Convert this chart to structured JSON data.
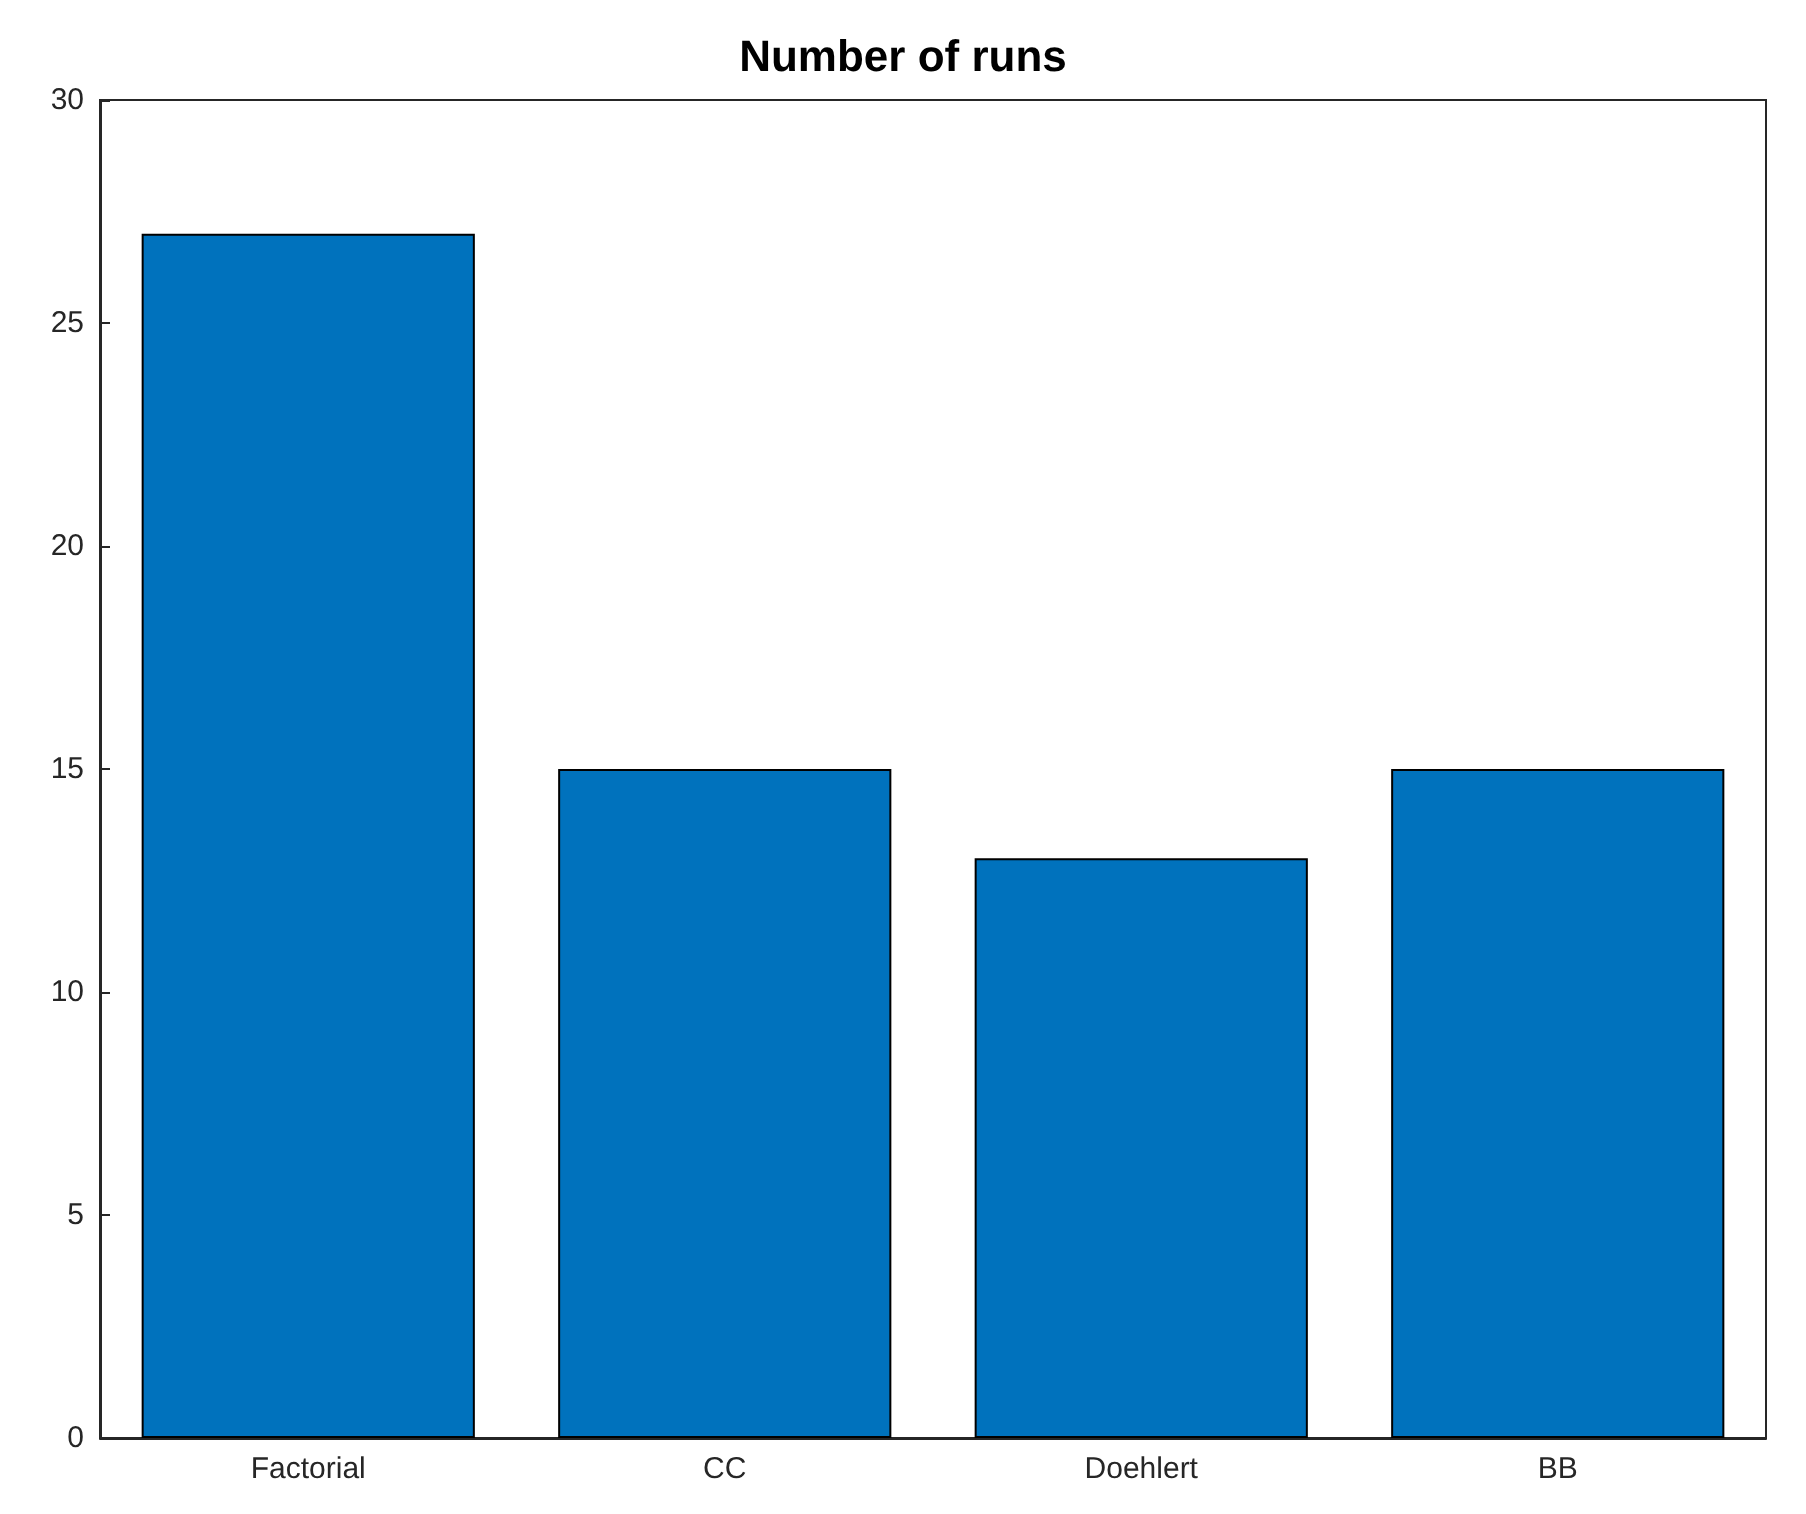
{
  "chart_data": {
    "type": "bar",
    "title": "Number of runs",
    "categories": [
      "Factorial",
      "CC",
      "Doehlert",
      "BB"
    ],
    "values": [
      27,
      15,
      13,
      15
    ],
    "color": "#0072bd",
    "ylim": [
      0,
      30
    ],
    "yticks": [
      0,
      5,
      10,
      15,
      20,
      25,
      30
    ],
    "grid": false
  }
}
